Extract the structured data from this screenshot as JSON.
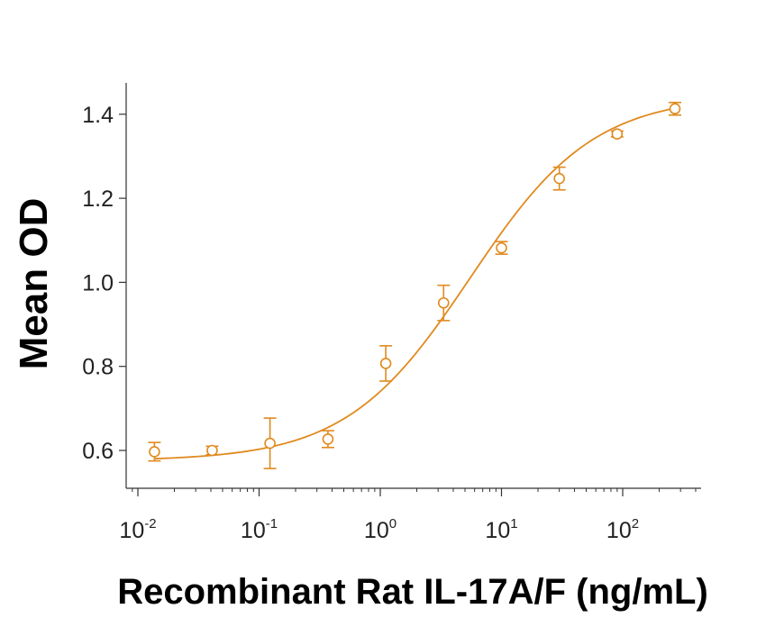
{
  "chart_data": {
    "type": "scatter",
    "title": "",
    "xlabel": "Recombinant Rat IL-17A/F (ng/mL)",
    "ylabel": "Mean OD",
    "x_scale": "log",
    "xlim": [
      0.0075,
      350
    ],
    "ylim": [
      0.52,
      1.48
    ],
    "x_ticks": [
      {
        "value": 0.01,
        "base": "10",
        "exp": "-2"
      },
      {
        "value": 0.1,
        "base": "10",
        "exp": "-1"
      },
      {
        "value": 1,
        "base": "10",
        "exp": "0"
      },
      {
        "value": 10,
        "base": "10",
        "exp": "1"
      },
      {
        "value": 100,
        "base": "10",
        "exp": "2"
      }
    ],
    "y_ticks": [
      "0.6",
      "0.8",
      "1.0",
      "1.2",
      "1.4"
    ],
    "grid": false,
    "legend": "none",
    "color": "#E08A1E",
    "series": [
      {
        "x": [
          0.0137,
          0.041,
          0.123,
          0.37,
          1.11,
          3.33,
          10,
          30,
          90,
          270
        ],
        "y": [
          0.597,
          0.6,
          0.617,
          0.627,
          0.807,
          0.951,
          1.082,
          1.247,
          1.353,
          1.413
        ],
        "error": [
          0.022,
          0.01,
          0.06,
          0.02,
          0.042,
          0.042,
          0.015,
          0.027,
          0.007,
          0.015
        ]
      }
    ],
    "fit": {
      "type": "4PL",
      "bottom": 0.575,
      "top": 1.445,
      "ec50": 5.5,
      "hill": 0.85
    }
  }
}
